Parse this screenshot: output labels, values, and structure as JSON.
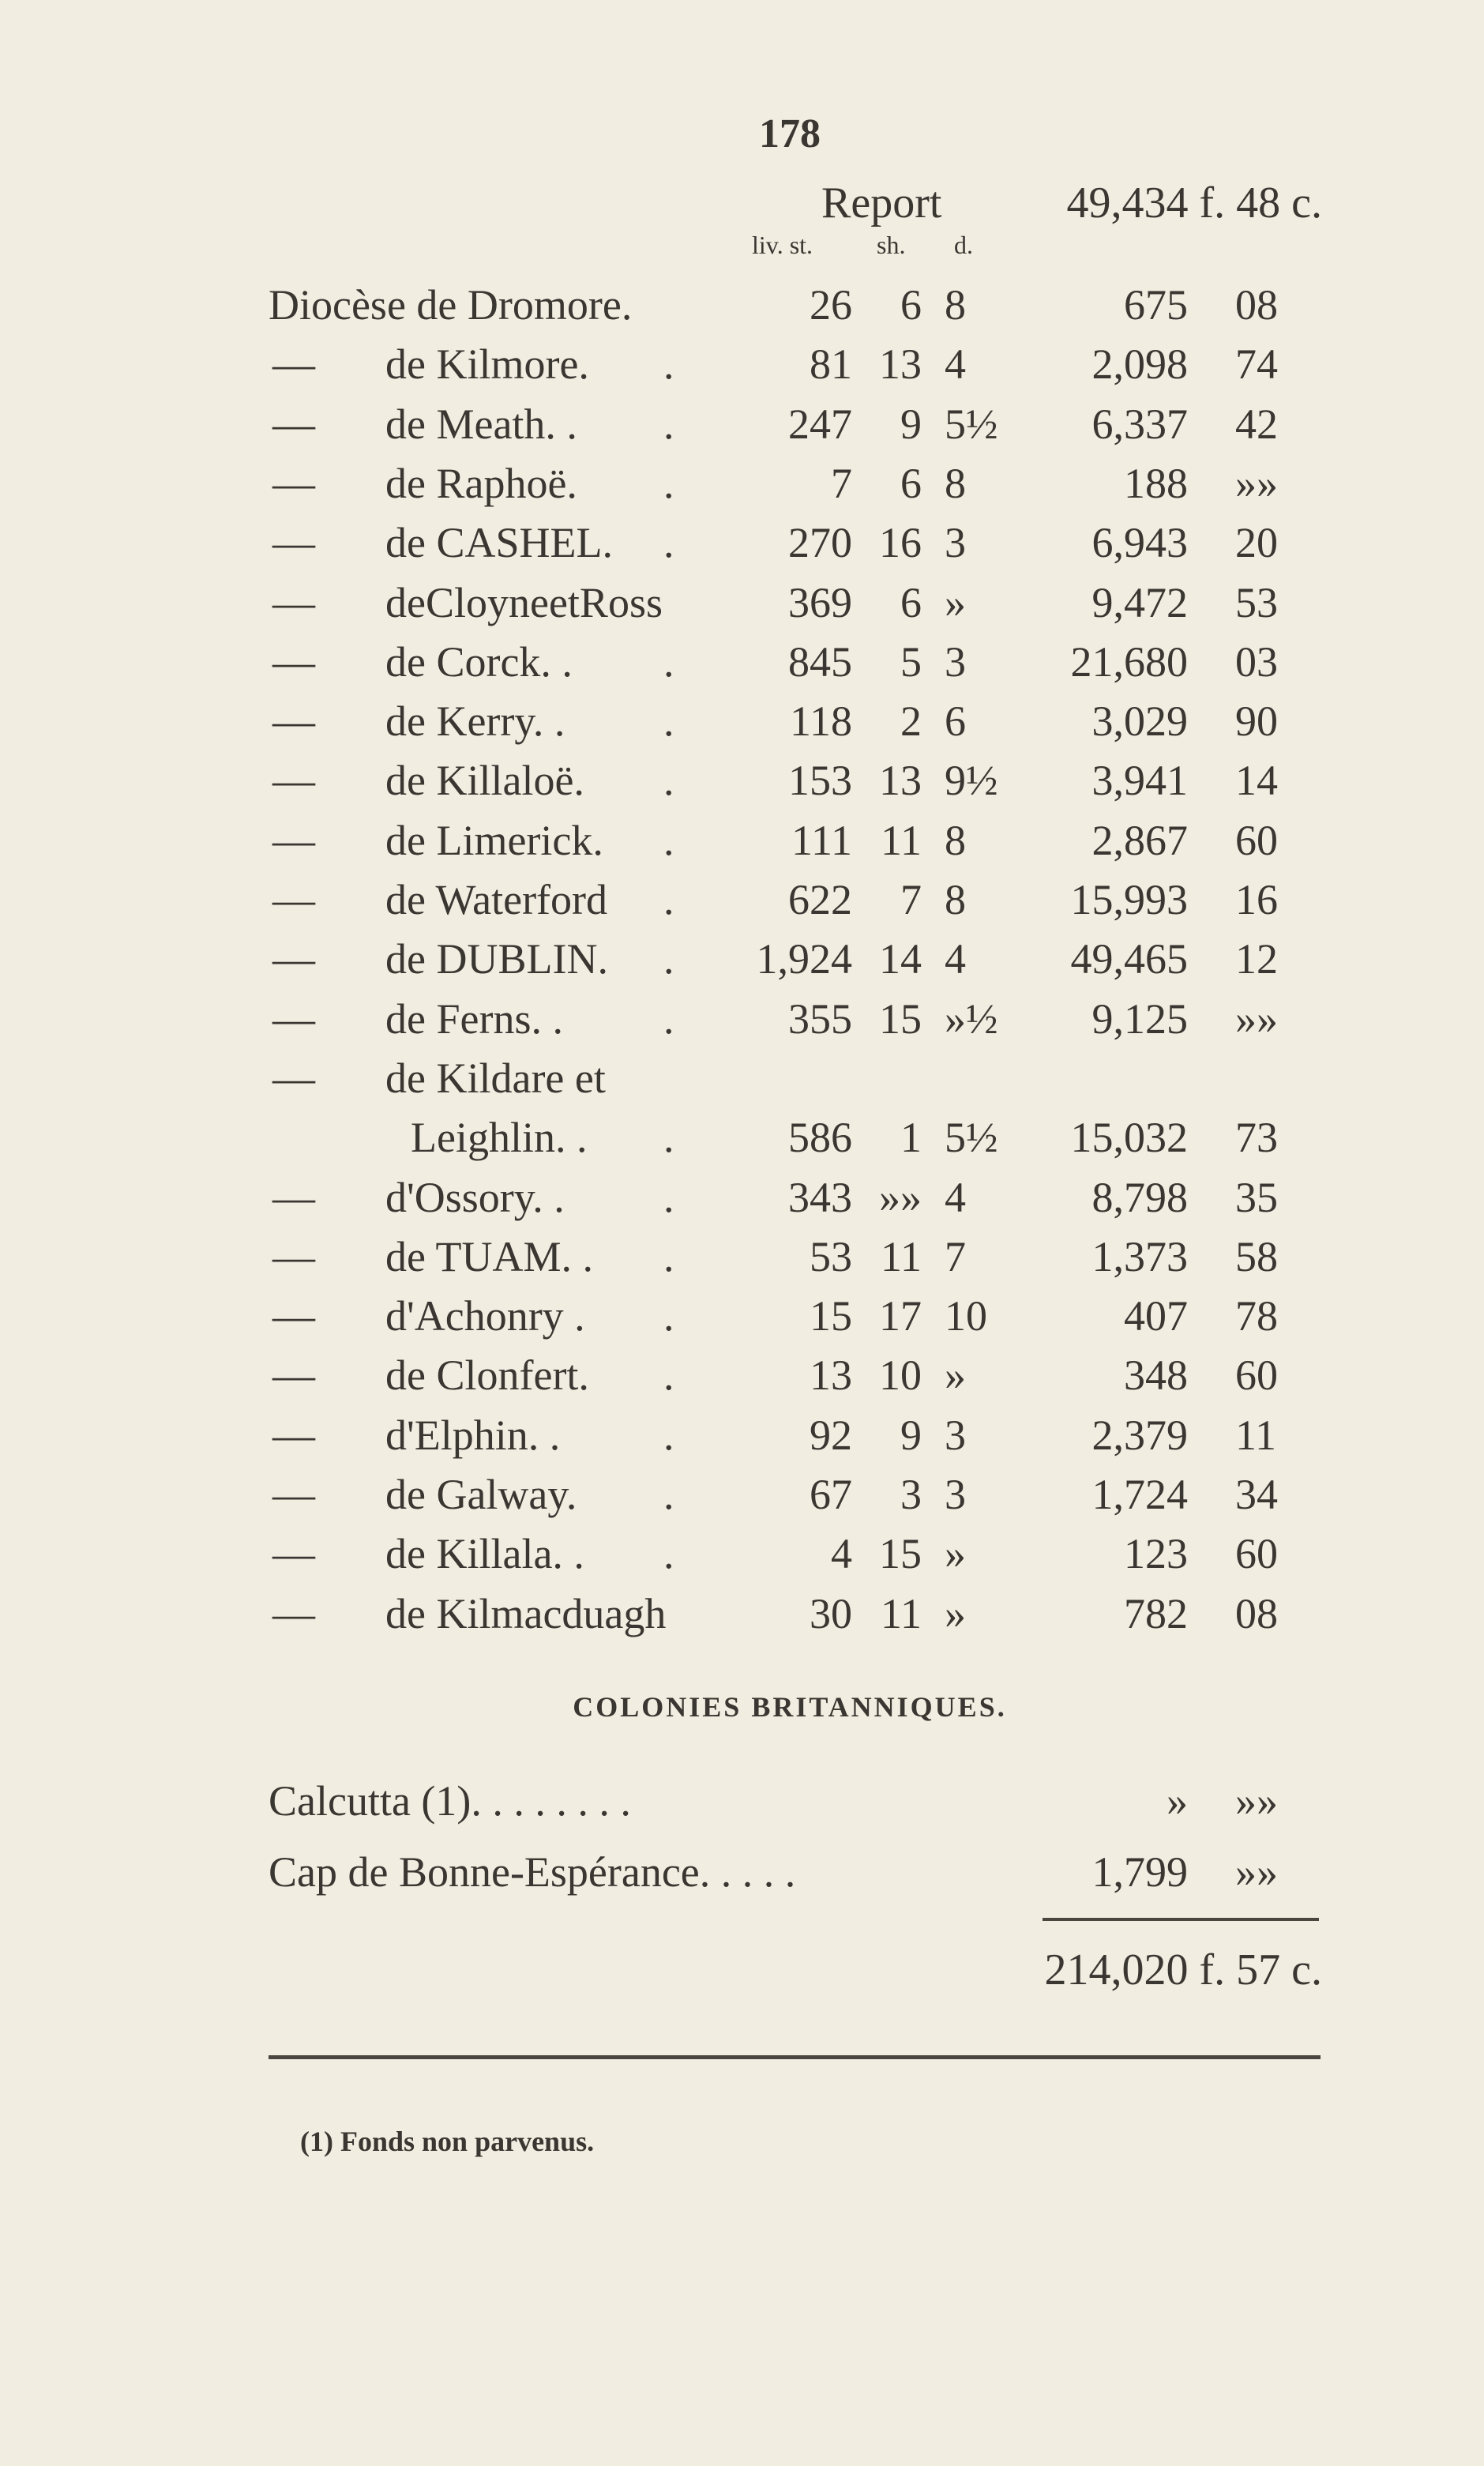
{
  "page_number": "178",
  "report": {
    "label": "Report",
    "value": "49,434 f. 48 c."
  },
  "column_headers": {
    "liv": "liv. st.",
    "sh": "sh.",
    "d": "d."
  },
  "rows": [
    {
      "dash": "",
      "name": "Diocèse de Dromore.",
      "dot": "",
      "liv": "26",
      "sh": "6",
      "d": "8",
      "francs": "675",
      "cents": "08"
    },
    {
      "dash": "—",
      "name": "de Kilmore.",
      "dot": ".",
      "liv": "81",
      "sh": "13",
      "d": "4",
      "francs": "2,098",
      "cents": "74"
    },
    {
      "dash": "—",
      "name": "de Meath. .",
      "dot": ".",
      "liv": "247",
      "sh": "9",
      "d": "5½",
      "francs": "6,337",
      "cents": "42"
    },
    {
      "dash": "—",
      "name": "de Raphoë.",
      "dot": ".",
      "liv": "7",
      "sh": "6",
      "d": "8",
      "francs": "188",
      "cents": "»»"
    },
    {
      "dash": "—",
      "name": "de CASHEL.",
      "dot": ".",
      "liv": "270",
      "sh": "16",
      "d": "3",
      "francs": "6,943",
      "cents": "20"
    },
    {
      "dash": "—",
      "name": "deCloyneetRoss",
      "dot": "",
      "liv": "369",
      "sh": "6",
      "d": "»",
      "francs": "9,472",
      "cents": "53"
    },
    {
      "dash": "—",
      "name": "de Corck. .",
      "dot": ".",
      "liv": "845",
      "sh": "5",
      "d": "3",
      "francs": "21,680",
      "cents": "03"
    },
    {
      "dash": "—",
      "name": "de Kerry. .",
      "dot": ".",
      "liv": "118",
      "sh": "2",
      "d": "6",
      "francs": "3,029",
      "cents": "90"
    },
    {
      "dash": "—",
      "name": "de Killaloë.",
      "dot": ".",
      "liv": "153",
      "sh": "13",
      "d": "9½",
      "francs": "3,941",
      "cents": "14"
    },
    {
      "dash": "—",
      "name": "de Limerick.",
      "dot": ".",
      "liv": "111",
      "sh": "11",
      "d": "8",
      "francs": "2,867",
      "cents": "60"
    },
    {
      "dash": "—",
      "name": "de Waterford",
      "dot": ".",
      "liv": "622",
      "sh": "7",
      "d": "8",
      "francs": "15,993",
      "cents": "16"
    },
    {
      "dash": "—",
      "name": "de DUBLIN.",
      "dot": ".",
      "liv": "1,924",
      "sh": "14",
      "d": "4",
      "francs": "49,465",
      "cents": "12"
    },
    {
      "dash": "—",
      "name": "de Ferns. .",
      "dot": ".",
      "liv": "355",
      "sh": "15",
      "d": "»½",
      "francs": "9,125",
      "cents": "»»"
    },
    {
      "dash": "—",
      "name": "de Kildare et",
      "dot": "",
      "liv": "",
      "sh": "",
      "d": "",
      "francs": "",
      "cents": ""
    },
    {
      "dash": "",
      "name": "Leighlin. .",
      "dot": ".",
      "liv": "586",
      "sh": "1",
      "d": "5½",
      "francs": "15,032",
      "cents": "73"
    },
    {
      "dash": "—",
      "name": "d'Ossory. .",
      "dot": ".",
      "liv": "343",
      "sh": "»»",
      "d": "4",
      "francs": "8,798",
      "cents": "35"
    },
    {
      "dash": "—",
      "name": "de TUAM. .",
      "dot": ".",
      "liv": "53",
      "sh": "11",
      "d": "7",
      "francs": "1,373",
      "cents": "58"
    },
    {
      "dash": "—",
      "name": "d'Achonry .",
      "dot": ".",
      "liv": "15",
      "sh": "17",
      "d": "10",
      "francs": "407",
      "cents": "78"
    },
    {
      "dash": "—",
      "name": "de Clonfert.",
      "dot": ".",
      "liv": "13",
      "sh": "10",
      "d": "»",
      "francs": "348",
      "cents": "60"
    },
    {
      "dash": "—",
      "name": "d'Elphin. .",
      "dot": ".",
      "liv": "92",
      "sh": "9",
      "d": "3",
      "francs": "2,379",
      "cents": "11"
    },
    {
      "dash": "—",
      "name": "de Galway.",
      "dot": ".",
      "liv": "67",
      "sh": "3",
      "d": "3",
      "francs": "1,724",
      "cents": "34"
    },
    {
      "dash": "—",
      "name": "de Killala. .",
      "dot": ".",
      "liv": "4",
      "sh": "15",
      "d": "»",
      "francs": "123",
      "cents": "60"
    },
    {
      "dash": "—",
      "name": "de Kilmacduagh",
      "dot": "",
      "liv": "30",
      "sh": "11",
      "d": "»",
      "francs": "782",
      "cents": "08"
    }
  ],
  "colonies": {
    "heading": "COLONIES BRITANNIQUES.",
    "items": [
      {
        "name": "Calcutta (1). . . . . . . .",
        "francs": "»",
        "cents": "»»"
      },
      {
        "name": "Cap de Bonne-Espérance. . . . .",
        "francs": "1,799",
        "cents": "»»"
      }
    ]
  },
  "total": "214,020 f. 57 c.",
  "footnote": "(1) Fonds non parvenus."
}
